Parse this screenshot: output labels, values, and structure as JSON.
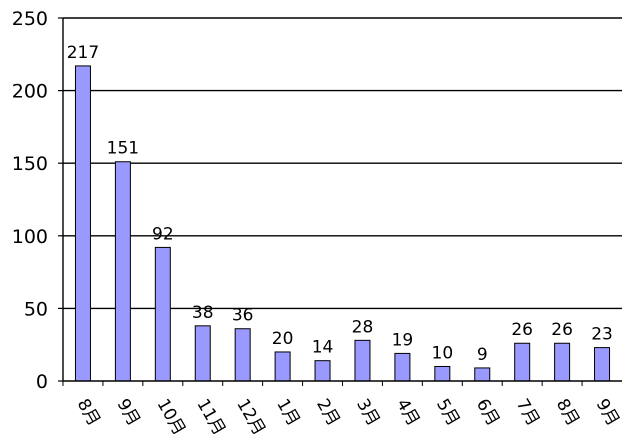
{
  "chart_data": {
    "type": "bar",
    "categories": [
      "8月",
      "9月",
      "10月",
      "11月",
      "12月",
      "1月",
      "2月",
      "3月",
      "4月",
      "5月",
      "6月",
      "7月",
      "8月",
      "9月"
    ],
    "values": [
      217,
      151,
      92,
      38,
      36,
      20,
      14,
      28,
      19,
      10,
      9,
      26,
      26,
      23
    ],
    "title": "",
    "xlabel": "",
    "ylabel": "",
    "ylim": [
      0,
      250
    ],
    "y_ticks": [
      0,
      50,
      100,
      150,
      200,
      250
    ],
    "grid": true,
    "bar_color": "#9999FF",
    "bar_edge_color": "#000000",
    "grid_color": "#000000"
  }
}
